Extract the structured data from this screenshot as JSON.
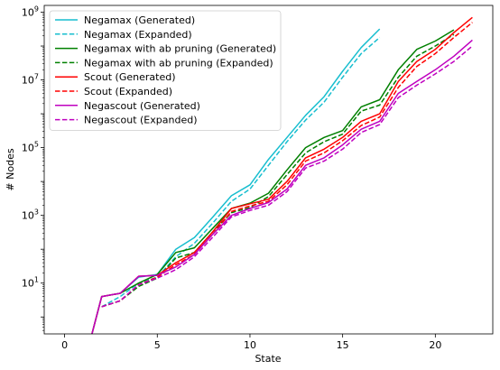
{
  "chart_data": {
    "type": "line",
    "title": "",
    "xlabel": "State",
    "ylabel": "# Nodes",
    "xlim": [
      -1.1,
      23.1
    ],
    "ylim_log10": [
      -0.5,
      9.2
    ],
    "yscale": "log",
    "grid": false,
    "legend_position": "top-left",
    "x_ticks": [
      0,
      5,
      10,
      15,
      20
    ],
    "y_ticks": [
      {
        "value": 1,
        "base": "10",
        "exp": "1"
      },
      {
        "value": 3,
        "base": "10",
        "exp": "3"
      },
      {
        "value": 5,
        "base": "10",
        "exp": "5"
      },
      {
        "value": 7,
        "base": "10",
        "exp": "7"
      },
      {
        "value": 9,
        "base": "10",
        "exp": "9"
      }
    ],
    "series": [
      {
        "name": "Negamax (Generated)",
        "color": "#17becf",
        "dash": "solid",
        "x": [
          1,
          2,
          3,
          4,
          5,
          6,
          7,
          8,
          9,
          10,
          11,
          12,
          13,
          14,
          15,
          16,
          17
        ],
        "y": [
          0,
          4,
          5,
          15,
          18,
          100,
          220,
          900,
          3800,
          8000,
          45000,
          200000,
          900000,
          3200000,
          18000000,
          90000000,
          320000000
        ]
      },
      {
        "name": "Negamax (Expanded)",
        "color": "#17becf",
        "dash": "dashed",
        "x": [
          2,
          3,
          4,
          5,
          6,
          7,
          8,
          9,
          10,
          11,
          12,
          13,
          14,
          15,
          16,
          17
        ],
        "y": [
          2,
          4,
          10,
          15,
          60,
          150,
          600,
          2600,
          6000,
          30000,
          150000,
          650000,
          2200000,
          12000000,
          60000000,
          180000000
        ]
      },
      {
        "name": "Negamax with ab pruning (Generated)",
        "color": "#008000",
        "dash": "solid",
        "x": [
          1,
          2,
          3,
          4,
          5,
          6,
          7,
          8,
          9,
          10,
          11,
          12,
          13,
          14,
          15,
          16,
          17,
          18,
          19,
          20,
          21
        ],
        "y": [
          0,
          4,
          5,
          10,
          18,
          80,
          110,
          420,
          1600,
          2300,
          4500,
          22000,
          100000,
          200000,
          320000,
          1600000,
          2600000,
          20000000,
          80000000,
          140000000,
          300000000
        ]
      },
      {
        "name": "Negamax with ab pruning (Expanded)",
        "color": "#008000",
        "dash": "dashed",
        "x": [
          2,
          3,
          4,
          5,
          6,
          7,
          8,
          9,
          10,
          11,
          12,
          13,
          14,
          15,
          16,
          17,
          18,
          19,
          20,
          21
        ],
        "y": [
          2,
          3,
          8,
          14,
          55,
          80,
          330,
          1200,
          1700,
          3600,
          16000,
          70000,
          150000,
          250000,
          1200000,
          1800000,
          12000000,
          50000000,
          100000000,
          220000000
        ]
      },
      {
        "name": "Scout (Generated)",
        "color": "#ff0000",
        "dash": "solid",
        "x": [
          1,
          2,
          3,
          4,
          5,
          6,
          7,
          8,
          9,
          10,
          11,
          12,
          13,
          14,
          15,
          16,
          17,
          18,
          19,
          20,
          21,
          22
        ],
        "y": [
          0,
          4,
          5,
          16,
          17,
          40,
          80,
          330,
          1600,
          2200,
          3000,
          10000,
          50000,
          90000,
          200000,
          600000,
          1000000,
          9000000,
          35000000,
          80000000,
          250000000,
          700000000
        ]
      },
      {
        "name": "Scout (Expanded)",
        "color": "#ff0000",
        "dash": "dashed",
        "x": [
          2,
          3,
          4,
          5,
          6,
          7,
          8,
          9,
          10,
          11,
          12,
          13,
          14,
          15,
          16,
          17,
          18,
          19,
          20,
          21,
          22
        ],
        "y": [
          2,
          3,
          9,
          15,
          35,
          70,
          280,
          1300,
          1900,
          2600,
          8000,
          40000,
          70000,
          160000,
          450000,
          800000,
          6000000,
          25000000,
          60000000,
          180000000,
          500000000
        ]
      },
      {
        "name": "Negascout (Generated)",
        "color": "#bf00bf",
        "dash": "solid",
        "x": [
          1,
          2,
          3,
          4,
          5,
          6,
          7,
          8,
          9,
          10,
          11,
          12,
          13,
          14,
          15,
          16,
          17,
          18,
          19,
          20,
          21,
          22
        ],
        "y": [
          0,
          4,
          5,
          16,
          17,
          30,
          70,
          280,
          1000,
          1600,
          2400,
          6000,
          30000,
          50000,
          120000,
          350000,
          600000,
          4000000,
          9000000,
          20000000,
          50000000,
          150000000
        ]
      },
      {
        "name": "Negascout (Expanded)",
        "color": "#bf00bf",
        "dash": "dashed",
        "x": [
          2,
          3,
          4,
          5,
          6,
          7,
          8,
          9,
          10,
          11,
          12,
          13,
          14,
          15,
          16,
          17,
          18,
          19,
          20,
          21,
          22
        ],
        "y": [
          2,
          3,
          9,
          14,
          25,
          60,
          230,
          900,
          1400,
          2000,
          5000,
          25000,
          40000,
          90000,
          280000,
          480000,
          3000000,
          7000000,
          15000000,
          35000000,
          100000000
        ]
      }
    ]
  }
}
